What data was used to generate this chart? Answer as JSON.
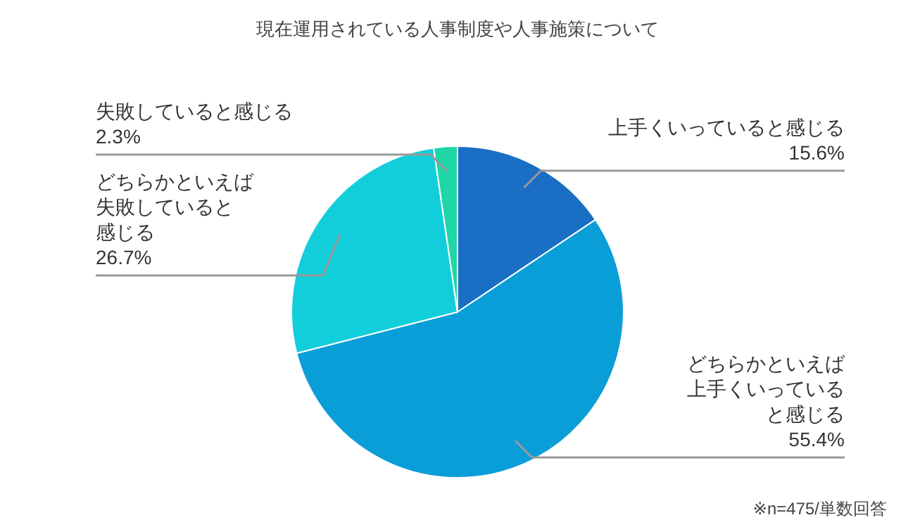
{
  "chart_data": {
    "type": "pie",
    "title": "現在運用されている人事制度や人事施策について",
    "categories": [
      "上手くいっていると感じる",
      "どちらかといえば上手くいっていると感じる",
      "どちらかといえば失敗していると感じる",
      "失敗していると感じる"
    ],
    "values": [
      15.6,
      55.4,
      26.7,
      2.3
    ],
    "value_labels": [
      "15.6%",
      "55.4%",
      "26.7%",
      "2.3%"
    ],
    "colors": [
      "#1a6fc4",
      "#0a9ed9",
      "#12cedb",
      "#1fd6a6"
    ],
    "annotations": [
      "※n=475/単数回答"
    ]
  }
}
